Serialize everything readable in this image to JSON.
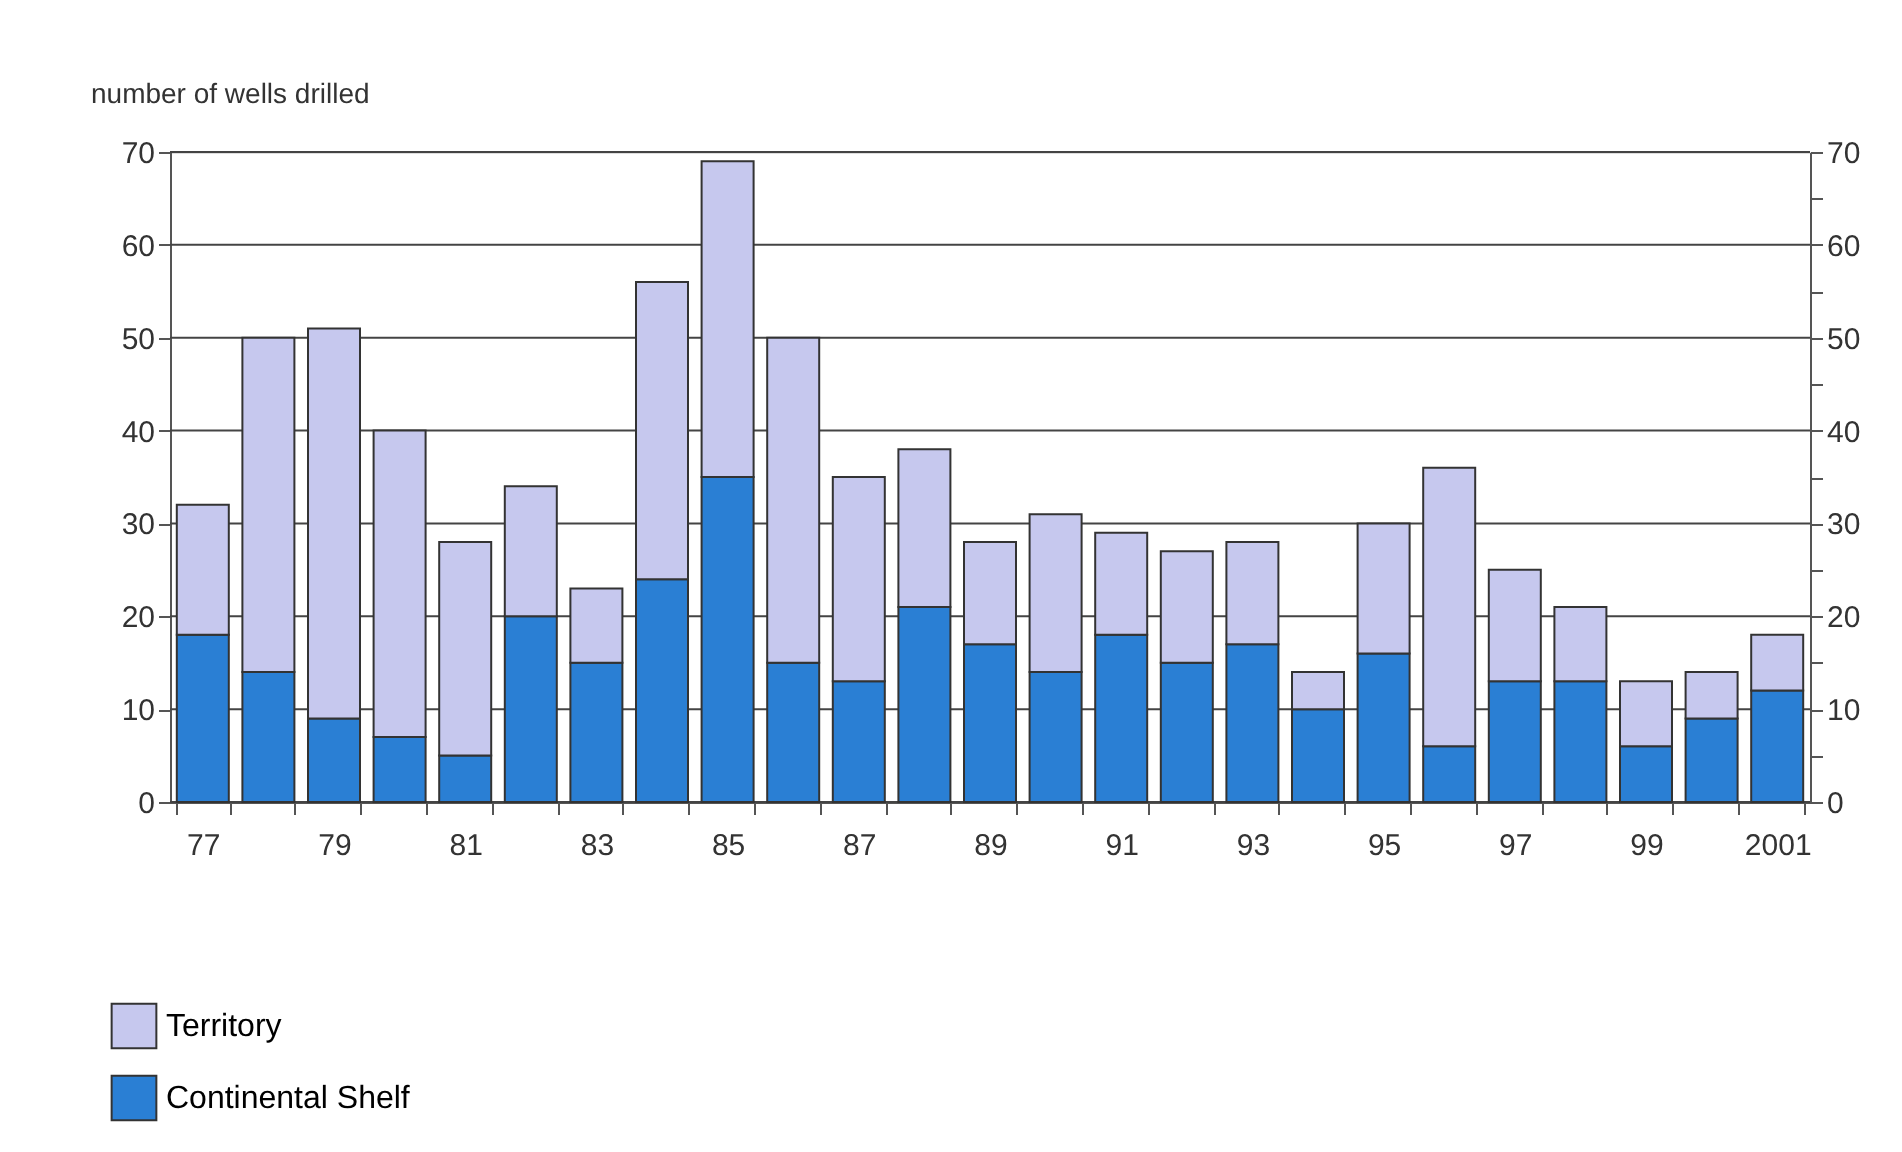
{
  "chart_data": {
    "type": "bar",
    "stacked": true,
    "ylabel": "number of wells drilled",
    "categories": [
      "77",
      null,
      "79",
      null,
      "81",
      null,
      "83",
      null,
      "85",
      null,
      "87",
      null,
      "89",
      null,
      "91",
      null,
      "93",
      null,
      "95",
      null,
      "97",
      null,
      "99",
      null,
      "2001"
    ],
    "series": [
      {
        "name": "Continental Shelf",
        "color": "#2a7fd4",
        "values": [
          18,
          14,
          9,
          7,
          5,
          20,
          15,
          24,
          35,
          15,
          13,
          21,
          17,
          14,
          18,
          15,
          17,
          10,
          16,
          6,
          13,
          13,
          6,
          9,
          12
        ]
      },
      {
        "name": "Territory",
        "color": "#c6c8ee",
        "values": [
          14,
          36,
          42,
          33,
          23,
          14,
          8,
          32,
          34,
          35,
          22,
          17,
          11,
          17,
          11,
          12,
          11,
          4,
          14,
          30,
          12,
          8,
          7,
          5,
          6
        ]
      }
    ],
    "ylim": [
      0,
      70
    ],
    "yticks": [
      0,
      {
        "value": 5,
        "label": null
      },
      10,
      {
        "value": 15,
        "label": null
      },
      20,
      {
        "value": 25,
        "label": null
      },
      30,
      {
        "value": 35,
        "label": null
      },
      40,
      {
        "value": 45,
        "label": null
      },
      50,
      {
        "value": 55,
        "label": null
      },
      60,
      {
        "value": 65,
        "label": null
      },
      70
    ],
    "y2lim": [
      0,
      70
    ],
    "y2ticks": [
      0,
      {
        "value": 5,
        "label": null
      },
      10,
      {
        "value": 15,
        "label": null
      },
      20,
      {
        "value": 25,
        "label": null
      },
      30,
      {
        "value": 35,
        "label": null
      },
      40,
      {
        "value": 45,
        "label": null
      },
      50,
      {
        "value": 55,
        "label": null
      },
      60,
      {
        "value": 65,
        "label": null
      },
      70
    ],
    "grid": "y",
    "legend": "bottom left"
  }
}
